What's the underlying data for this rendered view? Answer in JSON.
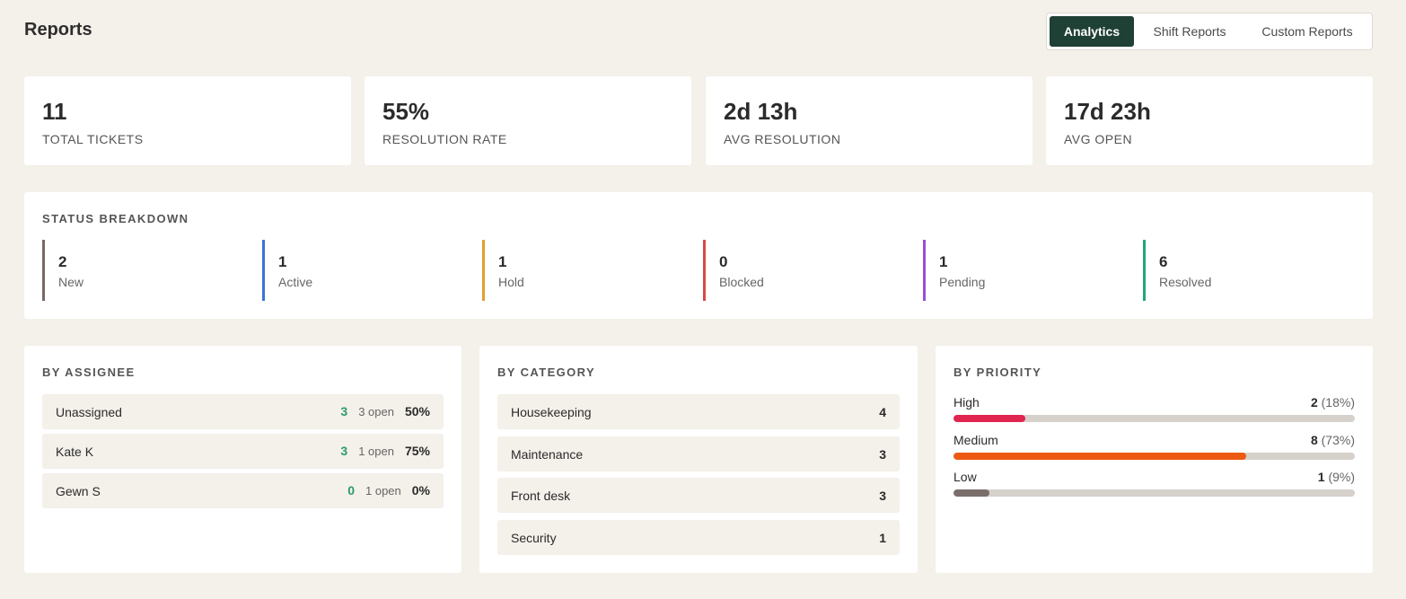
{
  "header": {
    "title": "Reports",
    "tabs": [
      {
        "label": "Analytics",
        "active": true
      },
      {
        "label": "Shift Reports",
        "active": false
      },
      {
        "label": "Custom Reports",
        "active": false
      }
    ]
  },
  "kpis": [
    {
      "value": "11",
      "label": "TOTAL TICKETS"
    },
    {
      "value": "55%",
      "label": "RESOLUTION RATE"
    },
    {
      "value": "2d 13h",
      "label": "AVG RESOLUTION"
    },
    {
      "value": "17d 23h",
      "label": "AVG OPEN"
    }
  ],
  "status_breakdown": {
    "title": "STATUS BREAKDOWN",
    "items": [
      {
        "count": "2",
        "name": "New",
        "color": "#7a6a66"
      },
      {
        "count": "1",
        "name": "Active",
        "color": "#3b73d9"
      },
      {
        "count": "1",
        "name": "Hold",
        "color": "#e0a030"
      },
      {
        "count": "0",
        "name": "Blocked",
        "color": "#d94848"
      },
      {
        "count": "1",
        "name": "Pending",
        "color": "#9a4fd6"
      },
      {
        "count": "6",
        "name": "Resolved",
        "color": "#22a67a"
      }
    ]
  },
  "by_assignee": {
    "title": "BY ASSIGNEE",
    "rows": [
      {
        "name": "Unassigned",
        "count": "3",
        "open": "3 open",
        "pct": "50%"
      },
      {
        "name": "Kate K",
        "count": "3",
        "open": "1 open",
        "pct": "75%"
      },
      {
        "name": "Gewn S",
        "count": "0",
        "open": "1 open",
        "pct": "0%"
      }
    ]
  },
  "by_category": {
    "title": "BY CATEGORY",
    "rows": [
      {
        "name": "Housekeeping",
        "count": "4"
      },
      {
        "name": "Maintenance",
        "count": "3"
      },
      {
        "name": "Front desk",
        "count": "3"
      },
      {
        "name": "Security",
        "count": "1"
      }
    ]
  },
  "by_priority": {
    "title": "BY PRIORITY",
    "items": [
      {
        "name": "High",
        "count": "2",
        "pct": "(18%)",
        "fraction": 0.18,
        "color": "#e0254f"
      },
      {
        "name": "Medium",
        "count": "8",
        "pct": "(73%)",
        "fraction": 0.73,
        "color": "#ec5a12"
      },
      {
        "name": "Low",
        "count": "1",
        "pct": "(9%)",
        "fraction": 0.09,
        "color": "#7a6e6a"
      }
    ]
  }
}
